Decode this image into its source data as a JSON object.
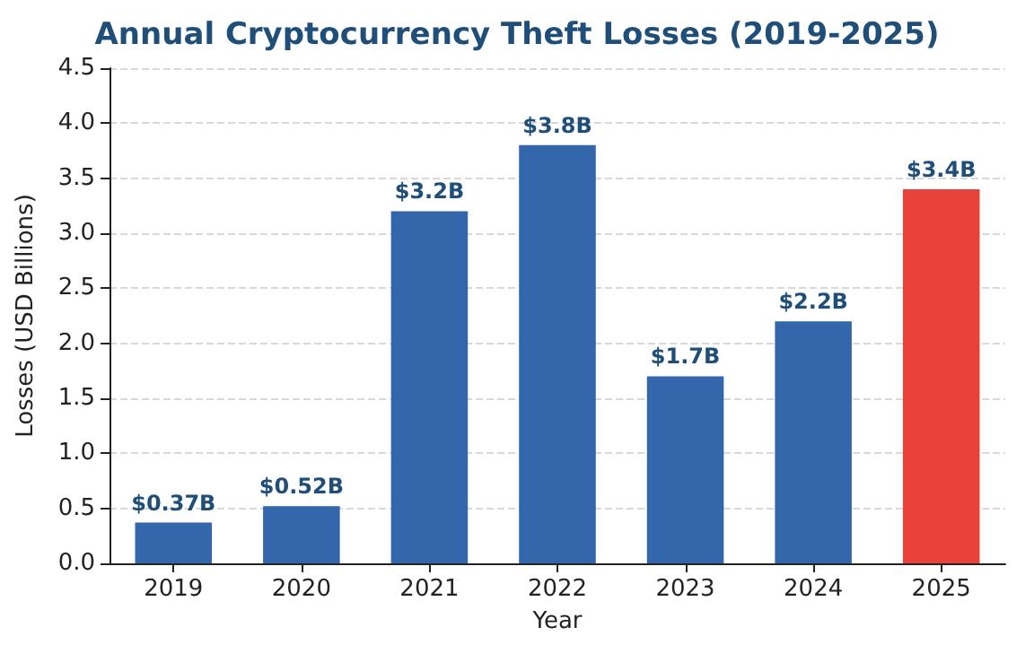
{
  "chart_data": {
    "type": "bar",
    "title": "Annual Cryptocurrency Theft Losses (2019-2025)",
    "xlabel": "Year",
    "ylabel": "Losses (USD Billions)",
    "categories": [
      "2019",
      "2020",
      "2021",
      "2022",
      "2023",
      "2024",
      "2025"
    ],
    "values": [
      0.37,
      0.52,
      3.2,
      3.8,
      1.7,
      2.2,
      3.4
    ],
    "colors": [
      "#3366aa",
      "#3366aa",
      "#3366aa",
      "#3366aa",
      "#3366aa",
      "#3366aa",
      "#e8423a"
    ],
    "value_labels": [
      "$0.37B",
      "$0.52B",
      "$3.2B",
      "$3.8B",
      "$1.7B",
      "$2.2B",
      "$3.4B"
    ],
    "ylim": [
      0,
      4.5
    ],
    "yticks": [
      {
        "value": 0,
        "label": "0.0"
      },
      0.5,
      {
        "value": 1,
        "label": "1.0"
      },
      1.5,
      {
        "value": 2,
        "label": "2.0"
      },
      2.5,
      {
        "value": 3,
        "label": "3.0"
      },
      3.5,
      {
        "value": 4,
        "label": "4.0"
      },
      4.5
    ],
    "grid": "y"
  }
}
